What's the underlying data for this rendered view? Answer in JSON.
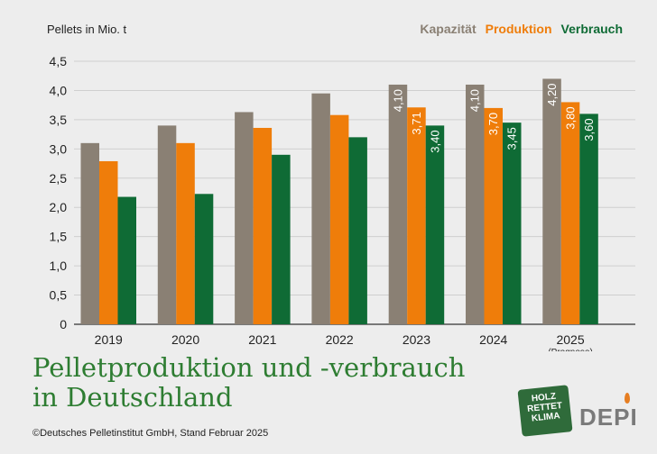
{
  "chart_data": {
    "type": "bar",
    "ylabel": "Pellets in Mio. t",
    "ylim": [
      0,
      4.5
    ],
    "yticks": [
      "0",
      "0,5",
      "1,0",
      "1,5",
      "2,0",
      "2,5",
      "3,0",
      "3,5",
      "4,0",
      "4,5"
    ],
    "categories": [
      "2019",
      "2020",
      "2021",
      "2022",
      "2023",
      "2024",
      "2025"
    ],
    "category_notes": [
      "",
      "",
      "",
      "",
      "",
      "",
      "(Prognose)"
    ],
    "grid": true,
    "legend_position": "top-right",
    "series": [
      {
        "name": "Kapazität",
        "color": "#8a8074",
        "values": [
          3.1,
          3.4,
          3.63,
          3.95,
          4.1,
          4.1,
          4.2
        ],
        "labels": [
          "",
          "",
          "",
          "",
          "4,10",
          "4,10",
          "4,20"
        ]
      },
      {
        "name": "Produktion",
        "color": "#ef7d0a",
        "values": [
          2.79,
          3.1,
          3.36,
          3.58,
          3.71,
          3.7,
          3.8
        ],
        "labels": [
          "",
          "",
          "",
          "",
          "3,71",
          "3,70",
          "3,80"
        ]
      },
      {
        "name": "Verbrauch",
        "color": "#0f6b35",
        "values": [
          2.18,
          2.23,
          2.9,
          3.2,
          3.4,
          3.45,
          3.6
        ],
        "labels": [
          "",
          "",
          "",
          "",
          "3,40",
          "3,45",
          "3,60"
        ]
      }
    ]
  },
  "title_line1": "Pelletproduktion und -verbrauch",
  "title_line2": "in Deutschland",
  "copyright": "©Deutsches Pelletinstitut GmbH, Stand Februar 2025",
  "logos": {
    "holz_rettet_klima": [
      "HOLZ",
      "RETTET",
      "KLIMA"
    ],
    "depi": "DEPI"
  }
}
